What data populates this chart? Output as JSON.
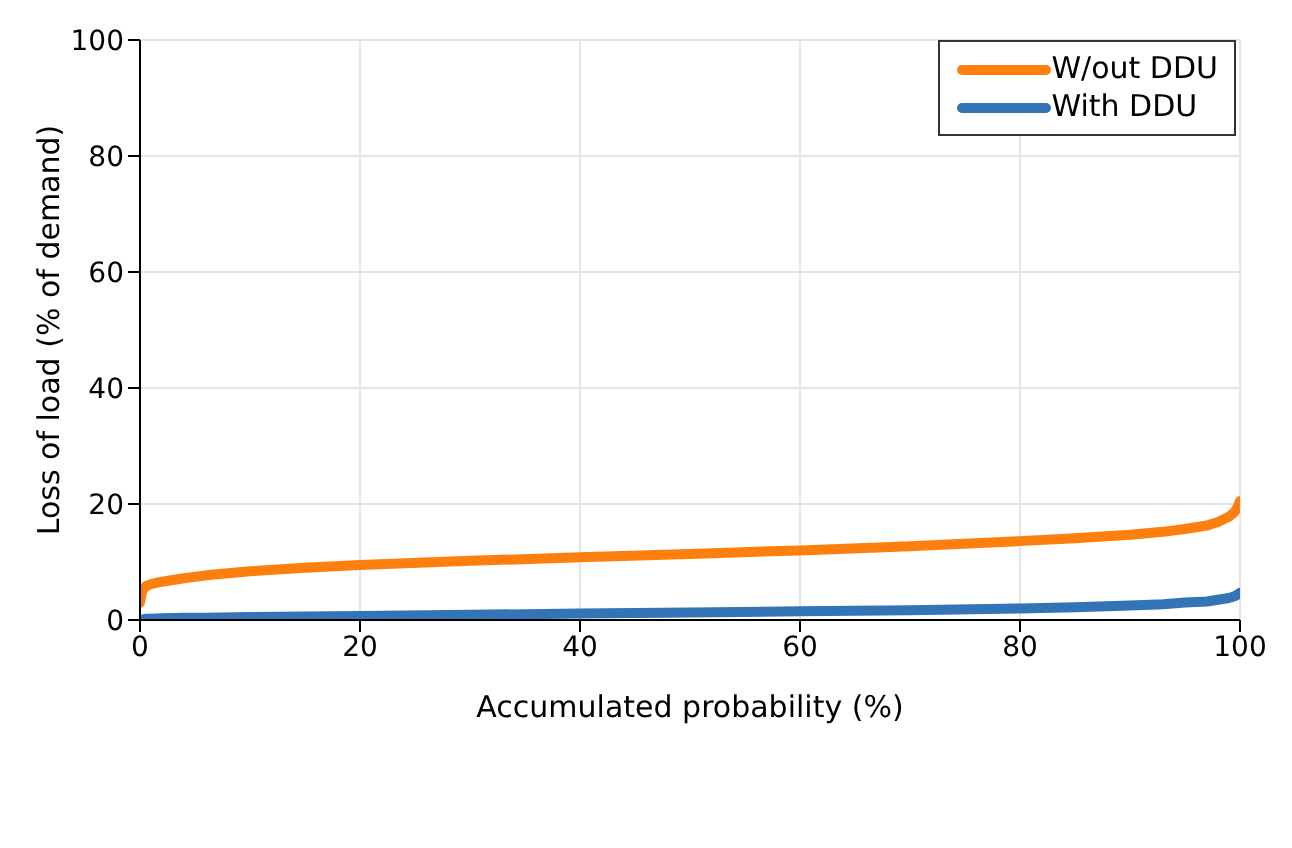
{
  "chart_data": {
    "type": "line",
    "xlabel": "Accumulated probability (%)",
    "ylabel": "Loss of load (% of demand)",
    "x": [
      0,
      0.2,
      0.5,
      1,
      2,
      4,
      6,
      10,
      15,
      20,
      30,
      40,
      50,
      60,
      70,
      80,
      85,
      90,
      93,
      95,
      97,
      98,
      99,
      99.5,
      99.8,
      100
    ],
    "series": [
      {
        "name": "W/out DDU",
        "color": "#ff7f0e",
        "values": [
          3,
          5,
          5.8,
          6.2,
          6.6,
          7.2,
          7.7,
          8.4,
          9,
          9.5,
          10.2,
          10.8,
          11.4,
          12,
          12.7,
          13.6,
          14.1,
          14.7,
          15.2,
          15.7,
          16.3,
          16.9,
          17.8,
          18.6,
          19.5,
          20.5
        ]
      },
      {
        "name": "With DDU",
        "color": "#3274b5",
        "values": [
          0.1,
          0.1,
          0.2,
          0.2,
          0.3,
          0.4,
          0.4,
          0.5,
          0.6,
          0.7,
          0.9,
          1.1,
          1.3,
          1.5,
          1.7,
          2,
          2.2,
          2.5,
          2.7,
          3,
          3.2,
          3.5,
          3.8,
          4.1,
          4.4,
          4.7
        ]
      }
    ],
    "xlim": [
      0,
      100
    ],
    "xticks": [
      0,
      20,
      40,
      60,
      80,
      100
    ],
    "ylim": [
      0,
      100
    ],
    "yticks": [
      0,
      20,
      40,
      60,
      80,
      100
    ],
    "grid": true,
    "legend": "top right",
    "marker": "none",
    "line_style": "solid"
  }
}
